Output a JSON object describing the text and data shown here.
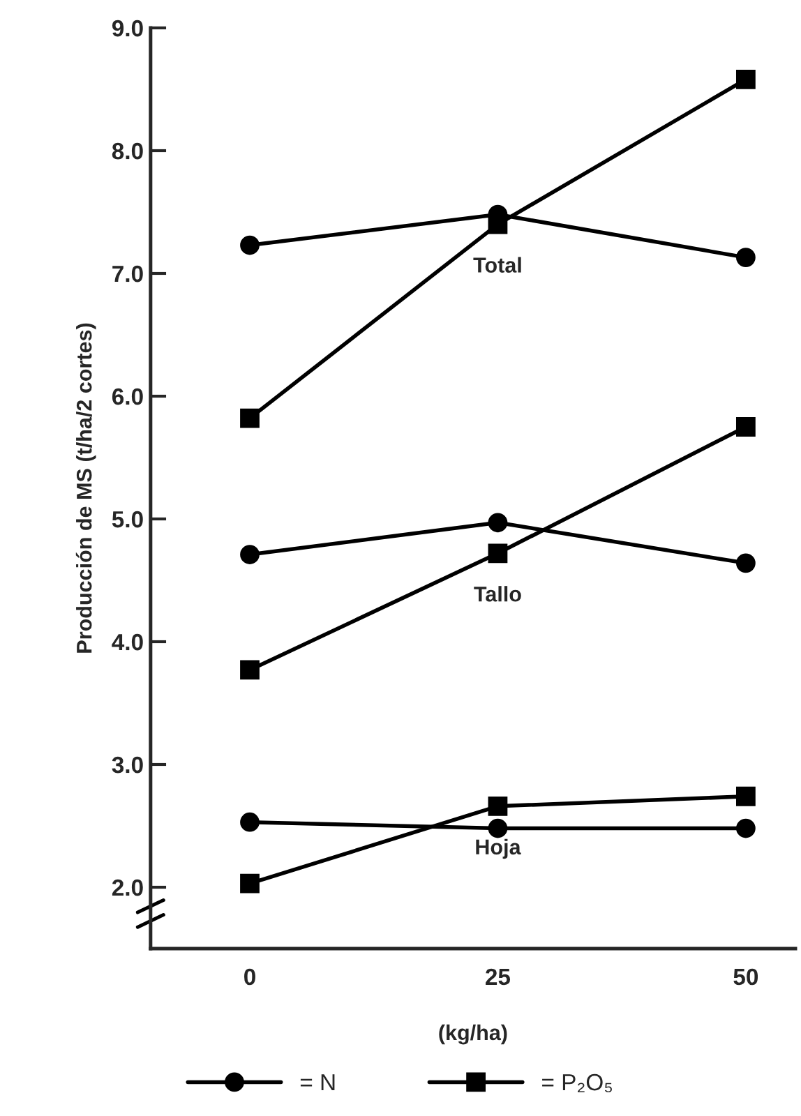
{
  "chart_data": {
    "type": "line",
    "ylabel": "Producción de MS (t/ha/2 cortes)",
    "xlabel": "(kg/ha)",
    "x": [
      0,
      25,
      50
    ],
    "series": [
      {
        "name": "= N",
        "color": "#000000",
        "marker": "circle",
        "values": [
          7.23,
          7.48,
          7.13
        ]
      },
      {
        "name": "= P₂O₅",
        "color": "#000000",
        "marker": "square",
        "values": [
          5.82,
          7.4,
          8.58
        ]
      },
      {
        "color": "#000000",
        "marker": "circle",
        "values": [
          4.71,
          4.97,
          4.64
        ]
      },
      {
        "color": "#000000",
        "marker": "square",
        "values": [
          3.77,
          4.72,
          5.75
        ]
      },
      {
        "color": "#000000",
        "marker": "circle",
        "values": [
          2.53,
          2.48,
          2.48
        ]
      },
      {
        "color": "#000000",
        "marker": "square",
        "values": [
          2.03,
          2.66,
          2.74
        ]
      }
    ],
    "annotations": [
      "Total",
      "Tallo",
      "Hoja"
    ],
    "xlim": [
      -10,
      55
    ],
    "xticks": [
      0,
      25,
      50
    ],
    "ylim": [
      1.5,
      9.0
    ],
    "yticks": [
      {
        "value": 2,
        "label": "2.0"
      },
      {
        "value": 3,
        "label": "3.0"
      },
      {
        "value": 4,
        "label": "4.0"
      },
      {
        "value": 5,
        "label": "5.0"
      },
      {
        "value": 6,
        "label": "6.0"
      },
      {
        "value": 7,
        "label": "7.0"
      },
      {
        "value": 8,
        "label": "8.0"
      },
      {
        "value": 9,
        "label": "9.0"
      }
    ],
    "grid": false,
    "legend": "bottom",
    "line_style": "solid"
  }
}
